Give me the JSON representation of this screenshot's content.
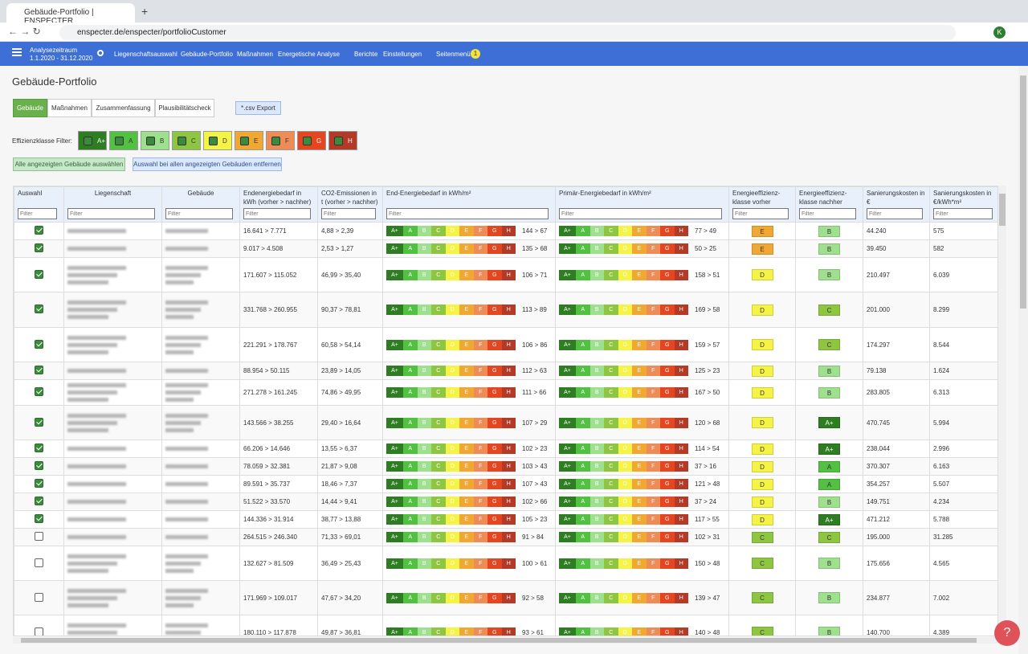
{
  "browser": {
    "tab_title": "Gebäude-Portfolio | ENSPECTER",
    "url": "enspecter.de/enspecter/portfolioCustomer",
    "avatar": "K"
  },
  "nav": {
    "period_label": "Analysezeitraum",
    "period": "1.1.2020 - 31.12.2020",
    "items": [
      "Liegenschaftsauswahl",
      "Gebäude-Portfolio",
      "Maßnahmen",
      "Energetische Analyse",
      "Berichte",
      "Einstellungen",
      "Seitenmenü"
    ],
    "badge": "1"
  },
  "page": {
    "title": "Gebäude-Portfolio",
    "tabs": [
      "Gebäude",
      "Maßnahmen",
      "Zusammenfassung",
      "Plausibilitätscheck"
    ],
    "export": "*.csv Export",
    "filter_label": "Effizienzklasse Filter:",
    "select_all": "Alle angezeigten Gebäude auswählen",
    "deselect_all": "Auswahl bei allen angezeigten Gebäuden entfernen",
    "help": "?"
  },
  "classes": [
    {
      "label": "A+",
      "color": "#2f7d22"
    },
    {
      "label": "A",
      "color": "#52c041"
    },
    {
      "label": "B",
      "color": "#9fe08f"
    },
    {
      "label": "C",
      "color": "#8fc641"
    },
    {
      "label": "D",
      "color": "#f6f347"
    },
    {
      "label": "E",
      "color": "#f0a832"
    },
    {
      "label": "F",
      "color": "#ee8c58"
    },
    {
      "label": "G",
      "color": "#e6461f"
    },
    {
      "label": "H",
      "color": "#b23a27"
    }
  ],
  "table": {
    "headers": [
      "Auswahl",
      "Liegenschaft",
      "Gebäude",
      "Endenergiebedarf in kWh (vorher > nachher)",
      "CO2-Emissionen in t (vorher > nachher)",
      "End-Energiebedarf in kWh/m²",
      "Primär-Energiebedarf in kWh/m²",
      "Energieeffizienz-klasse vorher",
      "Energieeffizienz-klasse nachher",
      "Sanierungskosten in €",
      "Sanierungskosten in €/kWh*m²"
    ],
    "filter_placeholder": "Filter",
    "rows": [
      {
        "checked": true,
        "end_demand": "16.641 > 7.771",
        "co2": "4,88 > 2,39",
        "end_energy": "144 > 67",
        "primary_energy": "77 > 49",
        "class_before": "E",
        "class_after": "B",
        "costs": "44.240",
        "costs_per_kwh": "575"
      },
      {
        "checked": true,
        "end_demand": "9.017 > 4.508",
        "co2": "2,53 > 1,27",
        "end_energy": "135 > 68",
        "primary_energy": "50 > 25",
        "class_before": "E",
        "class_after": "B",
        "costs": "39.450",
        "costs_per_kwh": "582"
      },
      {
        "checked": true,
        "end_demand": "171.607 > 115.052",
        "co2": "46,99 > 35,40",
        "end_energy": "106 > 71",
        "primary_energy": "158 > 51",
        "class_before": "D",
        "class_after": "B",
        "costs": "210.497",
        "costs_per_kwh": "6.039"
      },
      {
        "checked": true,
        "end_demand": "331.768 > 260.955",
        "co2": "90,37 > 78,81",
        "end_energy": "113 > 89",
        "primary_energy": "169 > 58",
        "class_before": "D",
        "class_after": "C",
        "costs": "201.000",
        "costs_per_kwh": "8.299"
      },
      {
        "checked": true,
        "end_demand": "221.291 > 178.767",
        "co2": "60,58 > 54,14",
        "end_energy": "106 > 86",
        "primary_energy": "159 > 57",
        "class_before": "D",
        "class_after": "C",
        "costs": "174.297",
        "costs_per_kwh": "8.544"
      },
      {
        "checked": true,
        "end_demand": "88.954 > 50.115",
        "co2": "23,89 > 14,05",
        "end_energy": "112 > 63",
        "primary_energy": "125 > 23",
        "class_before": "D",
        "class_after": "B",
        "costs": "79.138",
        "costs_per_kwh": "1.624"
      },
      {
        "checked": true,
        "end_demand": "271.278 > 161.245",
        "co2": "74,86 > 49,95",
        "end_energy": "111 > 66",
        "primary_energy": "167 > 50",
        "class_before": "D",
        "class_after": "B",
        "costs": "283.805",
        "costs_per_kwh": "6.313"
      },
      {
        "checked": true,
        "end_demand": "143.566 > 38.255",
        "co2": "29,40 > 16,64",
        "end_energy": "107 > 29",
        "primary_energy": "120 > 68",
        "class_before": "D",
        "class_after": "A+",
        "costs": "470.745",
        "costs_per_kwh": "5.994"
      },
      {
        "checked": true,
        "end_demand": "66.206 > 14.646",
        "co2": "13,55 > 6,37",
        "end_energy": "102 > 23",
        "primary_energy": "114 > 54",
        "class_before": "D",
        "class_after": "A+",
        "costs": "238.044",
        "costs_per_kwh": "2.996"
      },
      {
        "checked": true,
        "end_demand": "78.059 > 32.381",
        "co2": "21,87 > 9,08",
        "end_energy": "103 > 43",
        "primary_energy": "37 > 16",
        "class_before": "D",
        "class_after": "A",
        "costs": "370.307",
        "costs_per_kwh": "6.163"
      },
      {
        "checked": true,
        "end_demand": "89.591 > 35.737",
        "co2": "18,46 > 7,37",
        "end_energy": "107 > 43",
        "primary_energy": "121 > 48",
        "class_before": "D",
        "class_after": "A",
        "costs": "354.257",
        "costs_per_kwh": "5.507"
      },
      {
        "checked": true,
        "end_demand": "51.522 > 33.570",
        "co2": "14,44 > 9,41",
        "end_energy": "102 > 66",
        "primary_energy": "37 > 24",
        "class_before": "D",
        "class_after": "B",
        "costs": "149.751",
        "costs_per_kwh": "4.234"
      },
      {
        "checked": true,
        "end_demand": "144.336 > 31.914",
        "co2": "38,77 > 13,88",
        "end_energy": "105 > 23",
        "primary_energy": "117 > 55",
        "class_before": "D",
        "class_after": "A+",
        "costs": "471.212",
        "costs_per_kwh": "5.788"
      },
      {
        "checked": false,
        "end_demand": "264.515 > 246.340",
        "co2": "71,33 > 69,01",
        "end_energy": "91 > 84",
        "primary_energy": "102 > 31",
        "class_before": "C",
        "class_after": "C",
        "costs": "195.000",
        "costs_per_kwh": "31.285"
      },
      {
        "checked": false,
        "end_demand": "132.627 > 81.509",
        "co2": "36,49 > 25,43",
        "end_energy": "100 > 61",
        "primary_energy": "150 > 48",
        "class_before": "C",
        "class_after": "B",
        "costs": "175.656",
        "costs_per_kwh": "4.565"
      },
      {
        "checked": false,
        "end_demand": "171.969 > 109.017",
        "co2": "47,67 > 34,20",
        "end_energy": "92 > 58",
        "primary_energy": "139 > 47",
        "class_before": "C",
        "class_after": "B",
        "costs": "234.877",
        "costs_per_kwh": "7.002"
      },
      {
        "checked": false,
        "end_demand": "180.110 > 117.878",
        "co2": "49,87 > 36,81",
        "end_energy": "93 > 61",
        "primary_energy": "140 > 48",
        "class_before": "C",
        "class_after": "B",
        "costs": "140.700",
        "costs_per_kwh": "4.389"
      }
    ]
  }
}
